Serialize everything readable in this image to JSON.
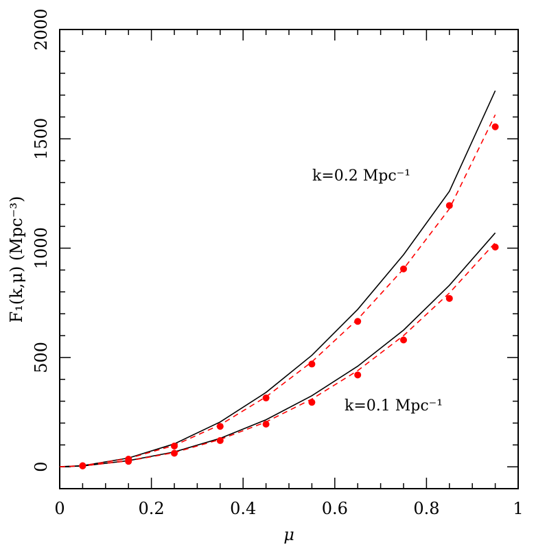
{
  "chart_data": {
    "type": "line",
    "xlabel": "μ",
    "ylabel": "F₁(k,μ)  (Mpc⁻³)",
    "xlim": [
      0,
      1
    ],
    "ylim": [
      -100,
      2000
    ],
    "x_ticks": [
      {
        "value": 0,
        "label": "0"
      },
      {
        "value": 0.2,
        "label": "0.2"
      },
      {
        "value": 0.4,
        "label": "0.4"
      },
      {
        "value": 0.6,
        "label": "0.6"
      },
      {
        "value": 0.8,
        "label": "0.8"
      },
      {
        "value": 1,
        "label": "1"
      }
    ],
    "y_ticks": [
      {
        "value": 0,
        "label": "0"
      },
      {
        "value": 500,
        "label": "500"
      },
      {
        "value": 1000,
        "label": "1000"
      },
      {
        "value": 1500,
        "label": "1500"
      },
      {
        "value": 2000,
        "label": "2000"
      }
    ],
    "grid": false,
    "annotations": [
      {
        "text": "k=0.2  Mpc⁻¹"
      },
      {
        "text": "k=0.1  Mpc⁻¹"
      }
    ],
    "series": [
      {
        "style": "solid",
        "color": "#000000",
        "x": [
          0,
          0.05,
          0.15,
          0.25,
          0.35,
          0.45,
          0.55,
          0.65,
          0.75,
          0.85,
          0.95
        ],
        "y": [
          0,
          5,
          40,
          105,
          205,
          340,
          510,
          720,
          970,
          1260,
          1720
        ]
      },
      {
        "style": "dashed",
        "color": "#ff0000",
        "x": [
          0,
          0.05,
          0.15,
          0.25,
          0.35,
          0.45,
          0.55,
          0.65,
          0.75,
          0.85,
          0.95
        ],
        "y": [
          0,
          5,
          38,
          98,
          192,
          320,
          480,
          675,
          905,
          1180,
          1610
        ]
      },
      {
        "style": "solid",
        "color": "#000000",
        "x": [
          0,
          0.05,
          0.15,
          0.25,
          0.35,
          0.45,
          0.55,
          0.65,
          0.75,
          0.85,
          0.95
        ],
        "y": [
          0,
          4,
          28,
          68,
          130,
          215,
          325,
          460,
          625,
          830,
          1070
        ]
      },
      {
        "style": "dashed",
        "color": "#ff0000",
        "x": [
          0,
          0.05,
          0.15,
          0.25,
          0.35,
          0.45,
          0.55,
          0.65,
          0.75,
          0.85,
          0.95
        ],
        "y": [
          0,
          4,
          27,
          65,
          125,
          205,
          310,
          440,
          600,
          795,
          1025
        ]
      },
      {
        "style": "points",
        "color": "#ff0000",
        "x": [
          0.05,
          0.15,
          0.25,
          0.35,
          0.45,
          0.55,
          0.65,
          0.75,
          0.85,
          0.95
        ],
        "y": [
          5,
          35,
          95,
          185,
          315,
          470,
          665,
          905,
          1195,
          1555
        ]
      },
      {
        "style": "points",
        "color": "#ff0000",
        "x": [
          0.05,
          0.15,
          0.25,
          0.35,
          0.45,
          0.55,
          0.65,
          0.75,
          0.85,
          0.95
        ],
        "y": [
          4,
          25,
          62,
          120,
          195,
          295,
          420,
          580,
          770,
          1005
        ]
      }
    ]
  }
}
